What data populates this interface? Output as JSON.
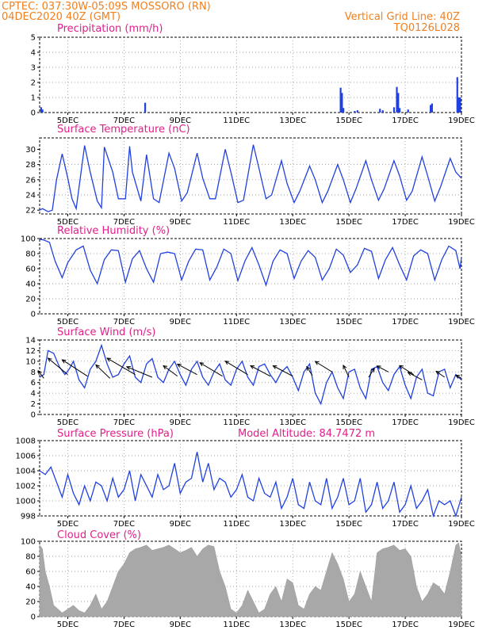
{
  "header": {
    "line1": "CPTEC:   037:30W-05:09S   MOSSORO (RN)",
    "line2_left": "04DEC2020 40Z (GMT)",
    "line2_right": "Vertical Grid Line: 40Z",
    "line3_right": "TQ0126L028"
  },
  "colors": {
    "header": "#f08020",
    "panel_title": "#e0208a",
    "series_line": "#2040e0",
    "bars": "#2040e0",
    "cloud_fill": "#a8a8a8",
    "arrow": "#000000"
  },
  "x_axis": {
    "tick_labels": [
      "5DEC",
      "7DEC",
      "9DEC",
      "11DEC",
      "13DEC",
      "15DEC",
      "17DEC",
      "19DEC"
    ]
  },
  "chart_data": [
    {
      "id": "precip",
      "type": "bar",
      "title": "Precipitation (mm/h)",
      "ylim": [
        0,
        5
      ],
      "yticks": [
        "0",
        "1",
        "2",
        "3",
        "4",
        "5"
      ],
      "xlim_days": [
        4.0,
        19.0
      ],
      "x": [
        4.05,
        4.1,
        7.75,
        14.7,
        14.75,
        14.8,
        15.2,
        15.3,
        16.1,
        16.2,
        16.6,
        16.7,
        16.75,
        16.8,
        17.1,
        17.9,
        17.95,
        18.85,
        18.9,
        18.95
      ],
      "values": [
        0.35,
        0.2,
        0.65,
        1.65,
        1.3,
        0.3,
        0.1,
        0.15,
        0.25,
        0.15,
        0.35,
        1.7,
        1.3,
        0.3,
        0.2,
        0.5,
        0.6,
        2.35,
        1.0,
        1.0
      ]
    },
    {
      "id": "temp",
      "type": "line",
      "title": "Surface Temperature (nC)",
      "ylim": [
        21.5,
        31.5
      ],
      "yticks": [
        "22",
        "24",
        "26",
        "28",
        "30"
      ],
      "x": [
        4.0,
        4.1,
        4.3,
        4.45,
        4.6,
        4.8,
        5.0,
        5.15,
        5.3,
        5.6,
        5.8,
        6.05,
        6.2,
        6.3,
        6.6,
        6.8,
        7.05,
        7.2,
        7.3,
        7.6,
        7.8,
        8.05,
        8.25,
        8.6,
        8.8,
        9.05,
        9.25,
        9.6,
        9.8,
        10.05,
        10.25,
        10.6,
        10.8,
        11.05,
        11.25,
        11.6,
        11.8,
        12.05,
        12.25,
        12.6,
        12.8,
        13.05,
        13.25,
        13.6,
        13.8,
        14.05,
        14.25,
        14.6,
        14.8,
        15.05,
        15.25,
        15.6,
        15.8,
        16.05,
        16.25,
        16.6,
        16.8,
        17.05,
        17.25,
        17.6,
        17.8,
        18.05,
        18.25,
        18.6,
        18.8,
        19.0
      ],
      "values": [
        22.0,
        22.2,
        21.8,
        22.0,
        26.0,
        29.4,
        26.2,
        23.5,
        22.2,
        30.5,
        27.0,
        23.2,
        22.3,
        30.3,
        27.0,
        23.5,
        23.5,
        30.4,
        27.0,
        23.2,
        29.3,
        23.5,
        23.0,
        29.5,
        27.5,
        23.2,
        24.3,
        29.5,
        26.2,
        23.5,
        23.5,
        30.0,
        27.0,
        23.0,
        23.3,
        30.6,
        27.5,
        23.5,
        24.0,
        28.5,
        25.5,
        23.0,
        24.5,
        27.8,
        26.0,
        23.0,
        24.5,
        28.0,
        26.0,
        23.0,
        24.8,
        28.5,
        26.0,
        23.3,
        24.8,
        28.5,
        26.5,
        23.3,
        24.5,
        29.0,
        26.5,
        23.2,
        25.0,
        28.8,
        27.0,
        26.2
      ]
    },
    {
      "id": "rh",
      "type": "line",
      "title": "Relative Humidity (%)",
      "ylim": [
        0,
        100
      ],
      "yticks": [
        "0",
        "20",
        "40",
        "60",
        "80",
        "100"
      ],
      "x": [
        4.0,
        4.15,
        4.35,
        4.55,
        4.8,
        5.0,
        5.3,
        5.55,
        5.8,
        6.05,
        6.3,
        6.55,
        6.8,
        7.05,
        7.3,
        7.55,
        7.8,
        8.05,
        8.3,
        8.55,
        8.8,
        9.05,
        9.3,
        9.55,
        9.8,
        10.05,
        10.3,
        10.55,
        10.8,
        11.05,
        11.3,
        11.55,
        11.8,
        12.05,
        12.3,
        12.55,
        12.8,
        13.05,
        13.3,
        13.55,
        13.8,
        14.05,
        14.3,
        14.55,
        14.8,
        15.05,
        15.3,
        15.55,
        15.8,
        16.05,
        16.3,
        16.55,
        16.8,
        17.05,
        17.3,
        17.55,
        17.8,
        18.05,
        18.3,
        18.55,
        18.8,
        18.95,
        19.0
      ],
      "values": [
        99.0,
        98.0,
        95.0,
        70.0,
        48.0,
        68.0,
        85.0,
        90.0,
        58.0,
        40.0,
        72.0,
        85.0,
        84.0,
        42.0,
        73.0,
        84.0,
        60.0,
        42.0,
        80.0,
        82.0,
        80.0,
        45.0,
        70.0,
        86.0,
        85.0,
        45.0,
        62.0,
        86.0,
        80.0,
        44.0,
        70.0,
        88.0,
        65.0,
        38.0,
        70.0,
        85.0,
        80.0,
        47.0,
        70.0,
        84.0,
        75.0,
        45.0,
        60.0,
        86.0,
        78.0,
        55.0,
        65.0,
        87.0,
        83.0,
        47.0,
        72.0,
        88.0,
        65.0,
        45.0,
        77.0,
        85.0,
        80.0,
        45.0,
        72.0,
        90.0,
        84.0,
        60.0,
        75.0
      ]
    },
    {
      "id": "wind",
      "type": "line",
      "title": "Surface Wind (m/s)",
      "ylim": [
        0,
        14
      ],
      "yticks": [
        "0",
        "2",
        "4",
        "6",
        "8",
        "10",
        "12",
        "14"
      ],
      "x": [
        4.0,
        4.15,
        4.3,
        4.5,
        4.7,
        4.9,
        5.05,
        5.2,
        5.4,
        5.6,
        5.8,
        6.0,
        6.2,
        6.4,
        6.6,
        6.8,
        7.0,
        7.2,
        7.4,
        7.6,
        7.8,
        8.0,
        8.2,
        8.4,
        8.6,
        8.8,
        9.0,
        9.2,
        9.4,
        9.6,
        9.8,
        10.0,
        10.2,
        10.4,
        10.6,
        10.8,
        11.0,
        11.2,
        11.4,
        11.6,
        11.8,
        12.0,
        12.2,
        12.4,
        12.6,
        12.8,
        13.0,
        13.2,
        13.4,
        13.6,
        13.8,
        14.0,
        14.2,
        14.4,
        14.6,
        14.8,
        15.0,
        15.2,
        15.4,
        15.6,
        15.8,
        16.0,
        16.2,
        16.4,
        16.6,
        16.8,
        17.0,
        17.2,
        17.4,
        17.6,
        17.8,
        18.0,
        18.2,
        18.4,
        18.6,
        18.8,
        19.0
      ],
      "values": [
        7.0,
        7.5,
        12.0,
        11.5,
        9.0,
        7.5,
        8.5,
        10.0,
        6.5,
        5.0,
        8.5,
        10.0,
        13.0,
        9.5,
        7.0,
        7.5,
        9.5,
        11.0,
        7.0,
        6.0,
        9.5,
        10.5,
        7.0,
        6.0,
        8.5,
        10.0,
        7.5,
        5.5,
        8.5,
        10.0,
        7.0,
        5.5,
        8.0,
        9.5,
        6.5,
        5.5,
        8.5,
        10.0,
        7.0,
        5.5,
        9.0,
        9.5,
        7.5,
        6.0,
        8.0,
        9.0,
        7.0,
        4.5,
        8.0,
        9.5,
        4.0,
        2.0,
        6.0,
        8.0,
        5.0,
        3.0,
        8.0,
        8.5,
        5.0,
        3.0,
        8.5,
        9.0,
        6.0,
        4.5,
        7.5,
        9.0,
        5.5,
        3.0,
        7.0,
        8.5,
        4.0,
        3.5,
        8.0,
        8.5,
        5.0,
        7.5,
        6.5
      ],
      "vectors": [
        {
          "x": 4.15,
          "y": 6.8,
          "u": -0.2,
          "v": 0.25
        },
        {
          "x": 5.0,
          "y": 7.5,
          "u": -0.7,
          "v": 0.55
        },
        {
          "x": 5.7,
          "y": 7.2,
          "u": -0.9,
          "v": 0.55
        },
        {
          "x": 6.5,
          "y": 6.8,
          "u": -0.5,
          "v": 0.45
        },
        {
          "x": 7.4,
          "y": 7.5,
          "u": -1.0,
          "v": 0.55
        },
        {
          "x": 8.0,
          "y": 7.0,
          "u": -0.9,
          "v": 0.35
        },
        {
          "x": 8.9,
          "y": 7.2,
          "u": -0.5,
          "v": 0.35
        },
        {
          "x": 9.6,
          "y": 7.5,
          "u": -0.7,
          "v": 0.35
        },
        {
          "x": 10.5,
          "y": 7.2,
          "u": -0.8,
          "v": 0.45
        },
        {
          "x": 11.4,
          "y": 7.5,
          "u": -0.8,
          "v": 0.45
        },
        {
          "x": 12.2,
          "y": 7.2,
          "u": -0.7,
          "v": 0.35
        },
        {
          "x": 13.0,
          "y": 7.2,
          "u": -0.7,
          "v": 0.35
        },
        {
          "x": 13.7,
          "y": 7.3,
          "u": -0.2,
          "v": 0.3
        },
        {
          "x": 14.4,
          "y": 8.0,
          "u": -0.6,
          "v": 0.35
        },
        {
          "x": 15.0,
          "y": 7.0,
          "u": -0.2,
          "v": 0.4
        },
        {
          "x": 15.7,
          "y": 7.0,
          "u": 0.2,
          "v": 0.3
        },
        {
          "x": 16.4,
          "y": 8.0,
          "u": -0.4,
          "v": 0.2
        },
        {
          "x": 17.3,
          "y": 7.5,
          "u": -0.5,
          "v": 0.3
        },
        {
          "x": 17.6,
          "y": 6.5,
          "u": -0.5,
          "v": 0.25
        },
        {
          "x": 18.4,
          "y": 7.0,
          "u": -0.3,
          "v": 0.2
        },
        {
          "x": 19.0,
          "y": 6.8,
          "u": -0.2,
          "v": 0.1
        }
      ]
    },
    {
      "id": "pressure",
      "type": "line",
      "title": "Surface Pressure (hPa)",
      "annotation": "Model Altitude: 84.7472 m",
      "ylim": [
        998,
        1008
      ],
      "yticks": [
        "998",
        "1000",
        "1002",
        "1004",
        "1006",
        "1008"
      ],
      "x": [
        4.0,
        4.2,
        4.4,
        4.6,
        4.8,
        5.0,
        5.2,
        5.4,
        5.6,
        5.8,
        6.0,
        6.2,
        6.4,
        6.6,
        6.8,
        7.0,
        7.2,
        7.4,
        7.6,
        7.8,
        8.0,
        8.2,
        8.4,
        8.6,
        8.8,
        9.0,
        9.2,
        9.4,
        9.6,
        9.8,
        10.0,
        10.2,
        10.4,
        10.6,
        10.8,
        11.0,
        11.2,
        11.4,
        11.6,
        11.8,
        12.0,
        12.2,
        12.4,
        12.6,
        12.8,
        13.0,
        13.2,
        13.4,
        13.6,
        13.8,
        14.0,
        14.2,
        14.4,
        14.6,
        14.8,
        15.0,
        15.2,
        15.4,
        15.6,
        15.8,
        16.0,
        16.2,
        16.4,
        16.6,
        16.8,
        17.0,
        17.2,
        17.4,
        17.6,
        17.8,
        18.0,
        18.2,
        18.4,
        18.6,
        18.8,
        19.0
      ],
      "values": [
        1004.0,
        1003.5,
        1004.5,
        1002.5,
        1000.5,
        1003.5,
        1001.0,
        999.5,
        1002.0,
        1000.0,
        1002.5,
        1002.0,
        1000.0,
        1003.0,
        1000.5,
        1001.5,
        1004.0,
        1000.0,
        1003.5,
        1002.0,
        1000.5,
        1003.5,
        1001.5,
        1002.0,
        1005.0,
        1001.0,
        1002.5,
        1003.0,
        1006.5,
        1002.5,
        1005.0,
        1001.5,
        1003.0,
        1002.5,
        1000.5,
        1001.5,
        1003.5,
        1000.5,
        1000.0,
        1003.0,
        1001.0,
        1000.5,
        1002.5,
        999.0,
        1000.5,
        1003.0,
        999.5,
        999.0,
        1002.5,
        1000.0,
        999.5,
        1003.0,
        999.0,
        1000.5,
        1003.0,
        999.5,
        1000.0,
        1003.0,
        998.5,
        999.5,
        1002.5,
        999.0,
        1000.0,
        1002.5,
        998.5,
        999.5,
        1002.0,
        999.0,
        1000.0,
        1001.5,
        998.0,
        1000.0,
        999.5,
        1000.0,
        998.0,
        1000.5
      ]
    },
    {
      "id": "cloud",
      "type": "area",
      "title": "Cloud Cover (%)",
      "ylim": [
        0,
        100
      ],
      "yticks": [
        "0",
        "20",
        "40",
        "60",
        "80",
        "100"
      ],
      "x": [
        4.0,
        4.1,
        4.2,
        4.35,
        4.5,
        4.65,
        4.8,
        5.0,
        5.2,
        5.4,
        5.6,
        5.8,
        6.0,
        6.2,
        6.4,
        6.6,
        6.8,
        7.0,
        7.2,
        7.4,
        7.6,
        7.8,
        8.0,
        8.2,
        8.4,
        8.6,
        8.8,
        9.0,
        9.2,
        9.4,
        9.6,
        9.8,
        10.0,
        10.2,
        10.4,
        10.6,
        10.8,
        11.0,
        11.2,
        11.4,
        11.6,
        11.8,
        12.0,
        12.2,
        12.4,
        12.6,
        12.8,
        13.0,
        13.2,
        13.4,
        13.6,
        13.8,
        14.0,
        14.2,
        14.4,
        14.6,
        14.8,
        15.0,
        15.2,
        15.4,
        15.6,
        15.8,
        16.0,
        16.2,
        16.4,
        16.6,
        16.8,
        17.0,
        17.2,
        17.4,
        17.6,
        17.8,
        18.0,
        18.2,
        18.4,
        18.6,
        18.8,
        18.9,
        19.0
      ],
      "values": [
        95.0,
        90.0,
        60.0,
        40.0,
        15.0,
        10.0,
        5.0,
        10.0,
        15.0,
        8.0,
        5.0,
        15.0,
        30.0,
        10.0,
        20.0,
        40.0,
        60.0,
        70.0,
        85.0,
        90.0,
        92.0,
        95.0,
        88.0,
        90.0,
        92.0,
        95.0,
        90.0,
        85.0,
        88.0,
        92.0,
        80.0,
        90.0,
        95.0,
        93.0,
        60.0,
        40.0,
        10.0,
        5.0,
        15.0,
        35.0,
        20.0,
        5.0,
        10.0,
        30.0,
        40.0,
        20.0,
        50.0,
        45.0,
        15.0,
        10.0,
        30.0,
        40.0,
        35.0,
        60.0,
        85.0,
        70.0,
        50.0,
        20.0,
        30.0,
        60.0,
        40.0,
        20.0,
        85.0,
        90.0,
        92.0,
        95.0,
        88.0,
        90.0,
        80.0,
        40.0,
        20.0,
        30.0,
        45.0,
        40.0,
        30.0,
        60.0,
        95.0,
        98.0,
        80.0
      ]
    }
  ]
}
